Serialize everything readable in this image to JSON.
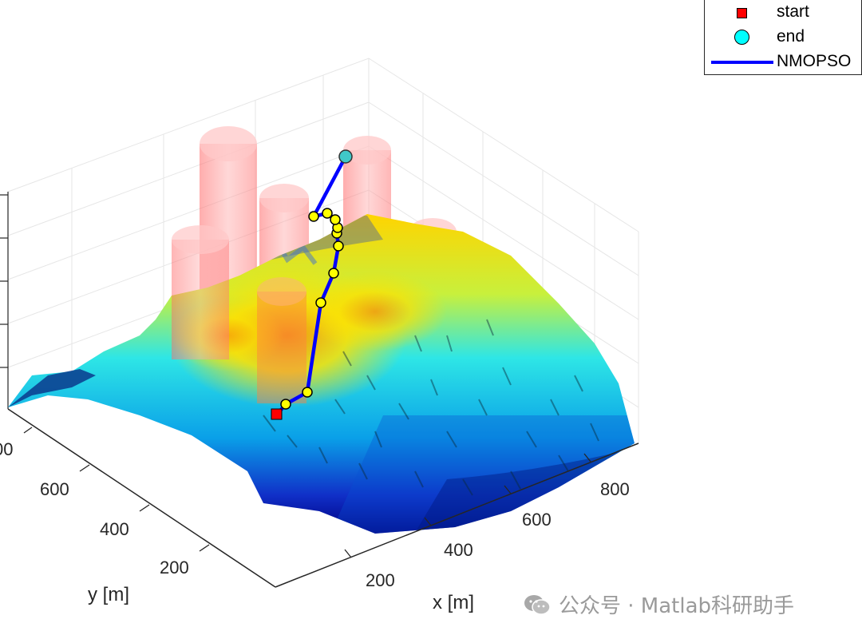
{
  "chart_data": {
    "type": "surface",
    "xlabel": "x [m]",
    "ylabel": "y [m]",
    "x_ticks": [
      "200",
      "400",
      "600",
      "800"
    ],
    "y_ticks": [
      "200",
      "400",
      "600",
      "00"
    ],
    "colormap": "jet",
    "legend": {
      "placement": "top-right",
      "entries": [
        {
          "label": "start",
          "marker": "square",
          "color": "#ff0000"
        },
        {
          "label": "end",
          "marker": "circle",
          "color": "#00ffff"
        },
        {
          "label": "NMOPSO",
          "marker": "line",
          "color": "#0000ff"
        }
      ]
    },
    "obstacles": {
      "shape": "cylinder",
      "color": "#ff8080",
      "count": 5
    },
    "path": {
      "series_name": "NMOPSO",
      "color": "#0000ff",
      "waypoint_color": "#ffff00",
      "waypoint_count": 12,
      "start_color": "#ff0000",
      "end_color": "#00ffff"
    },
    "grid": true
  },
  "watermark": {
    "text": "公众号 · Matlab科研助手"
  }
}
